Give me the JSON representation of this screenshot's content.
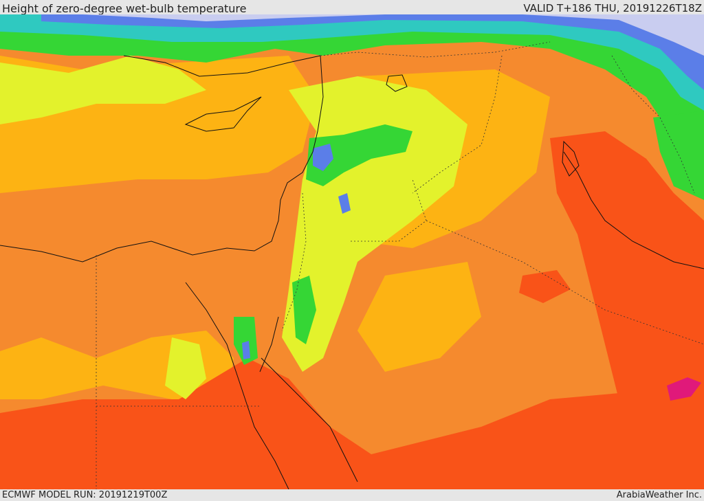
{
  "header": {
    "title": "Height of zero-degree wet-bulb temperature",
    "valid": "VALID T+186 THU, 20191226T18Z"
  },
  "footer": {
    "model_run": "ECMWF MODEL RUN: 20191219T00Z",
    "credit": "ArabiaWeather Inc."
  },
  "map": {
    "palette": {
      "very_low": "#c9cdf0",
      "low_blue": "#5b7ee8",
      "cyan": "#2fc9c0",
      "green": "#35d635",
      "light_green": "#9ee62e",
      "yellow_green": "#e3f22c",
      "yellow": "#f2e233",
      "light_orange": "#fdb313",
      "orange": "#f58a2e",
      "red_orange": "#f95318",
      "magenta": "#e0197a",
      "coast": "#111111",
      "border": "#333333"
    }
  }
}
